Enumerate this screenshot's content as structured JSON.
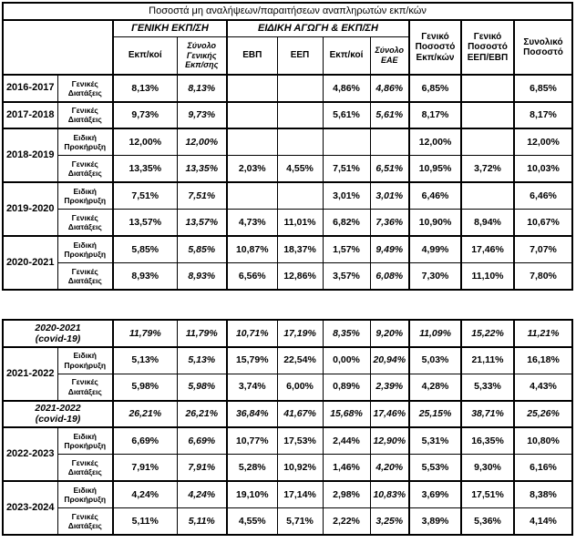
{
  "title": "Ποσοστά μη αναλήψεων/παραιτήσεων αναπληρωτών εκπ/κών",
  "header": {
    "group_general": "ΓΕΝΙΚΗ ΕΚΠ/ΣΗ",
    "group_special": "ΕΙΔΙΚΗ ΑΓΩΓΗ & ΕΚΠ/ΣΗ",
    "col_teachers_general": "Εκπ/κοί",
    "col_total_general": "Σύνολο Γενικής Εκπ/σης",
    "col_evp": "ΕΒΠ",
    "col_eep": "ΕΕΠ",
    "col_teachers_eae": "Εκπ/κοί",
    "col_total_eae": "Σύνολο ΕΑΕ",
    "col_general_pct_teachers": "Γενικό Ποσοστό Εκπ/κών",
    "col_general_pct_eep_evp": "Γενικό Ποσοστό ΕΕΠ/ΕΒΠ",
    "col_overall_pct": "Συνολικό Ποσοστό"
  },
  "table1": {
    "rows": [
      {
        "year": "2016-2017",
        "year_rowspan": 1,
        "category": "Γενικές Διατάξεις",
        "thick_top": true,
        "values": [
          "8,13%",
          "8,13%",
          "",
          "",
          "4,86%",
          "4,86%",
          "6,85%",
          "",
          "6,85%"
        ]
      },
      {
        "year": "2017-2018",
        "year_rowspan": 1,
        "category": "Γενικές Διατάξεις",
        "thick_top": true,
        "values": [
          "9,73%",
          "9,73%",
          "",
          "",
          "5,61%",
          "5,61%",
          "8,17%",
          "",
          "8,17%"
        ]
      },
      {
        "year": "2018-2019",
        "year_rowspan": 2,
        "category": "Ειδική Προκήρυξη",
        "thick_top": true,
        "values": [
          "12,00%",
          "12,00%",
          "",
          "",
          "",
          "",
          "12,00%",
          "",
          "12,00%"
        ]
      },
      {
        "category": "Γενικές Διατάξεις",
        "thick_top": false,
        "values": [
          "13,35%",
          "13,35%",
          "2,03%",
          "4,55%",
          "7,51%",
          "6,51%",
          "10,95%",
          "3,72%",
          "10,03%"
        ]
      },
      {
        "year": "2019-2020",
        "year_rowspan": 2,
        "category": "Ειδική Προκήρυξη",
        "thick_top": true,
        "values": [
          "7,51%",
          "7,51%",
          "",
          "",
          "3,01%",
          "3,01%",
          "6,46%",
          "",
          "6,46%"
        ]
      },
      {
        "category": "Γενικές Διατάξεις",
        "thick_top": false,
        "values": [
          "13,57%",
          "13,57%",
          "4,73%",
          "11,01%",
          "6,82%",
          "7,36%",
          "10,90%",
          "8,94%",
          "10,67%"
        ]
      },
      {
        "year": "2020-2021",
        "year_rowspan": 2,
        "category": "Ειδική Προκήρυξη",
        "thick_top": true,
        "values": [
          "5,85%",
          "5,85%",
          "10,87%",
          "18,37%",
          "1,57%",
          "9,49%",
          "4,99%",
          "17,46%",
          "7,07%"
        ]
      },
      {
        "category": "Γενικές Διατάξεις",
        "thick_top": false,
        "values": [
          "8,93%",
          "8,93%",
          "6,56%",
          "12,86%",
          "3,57%",
          "6,08%",
          "7,30%",
          "11,10%",
          "7,80%"
        ]
      }
    ]
  },
  "table2": {
    "rows": [
      {
        "covid": true,
        "year": "2020-2021\n(covid-19)",
        "thick_top": false,
        "values": [
          "11,79%",
          "11,79%",
          "10,71%",
          "17,19%",
          "8,35%",
          "9,20%",
          "11,09%",
          "15,22%",
          "11,21%"
        ]
      },
      {
        "year": "2021-2022",
        "year_rowspan": 2,
        "category": "Ειδική Προκήρυξη",
        "thick_top": true,
        "values": [
          "5,13%",
          "5,13%",
          "15,79%",
          "22,54%",
          "0,00%",
          "20,94%",
          "5,03%",
          "21,11%",
          "16,18%"
        ]
      },
      {
        "category": "Γενικές Διατάξεις",
        "thick_top": false,
        "values": [
          "5,98%",
          "5,98%",
          "3,74%",
          "6,00%",
          "0,89%",
          "2,39%",
          "4,28%",
          "5,33%",
          "4,43%"
        ]
      },
      {
        "covid": true,
        "year": "2021-2022\n(covid-19)",
        "thick_top": true,
        "values": [
          "26,21%",
          "26,21%",
          "36,84%",
          "41,67%",
          "15,68%",
          "17,46%",
          "25,15%",
          "38,71%",
          "25,26%"
        ]
      },
      {
        "year": "2022-2023",
        "year_rowspan": 2,
        "category": "Ειδική Προκήρυξη",
        "thick_top": true,
        "values": [
          "6,69%",
          "6,69%",
          "10,77%",
          "17,53%",
          "2,44%",
          "12,90%",
          "5,31%",
          "16,35%",
          "10,80%"
        ]
      },
      {
        "category": "Γενικές Διατάξεις",
        "thick_top": false,
        "values": [
          "7,91%",
          "7,91%",
          "5,28%",
          "10,92%",
          "1,46%",
          "4,20%",
          "5,53%",
          "9,30%",
          "6,16%"
        ]
      },
      {
        "year": "2023-2024",
        "year_rowspan": 2,
        "category": "Ειδική Προκήρυξη",
        "thick_top": true,
        "values": [
          "4,24%",
          "4,24%",
          "19,10%",
          "17,14%",
          "2,98%",
          "10,83%",
          "3,69%",
          "17,51%",
          "8,38%"
        ]
      },
      {
        "category": "Γενικές Διατάξεις",
        "thick_top": false,
        "values": [
          "5,11%",
          "5,11%",
          "4,55%",
          "5,71%",
          "2,22%",
          "3,25%",
          "3,89%",
          "5,36%",
          "4,14%"
        ]
      }
    ]
  }
}
